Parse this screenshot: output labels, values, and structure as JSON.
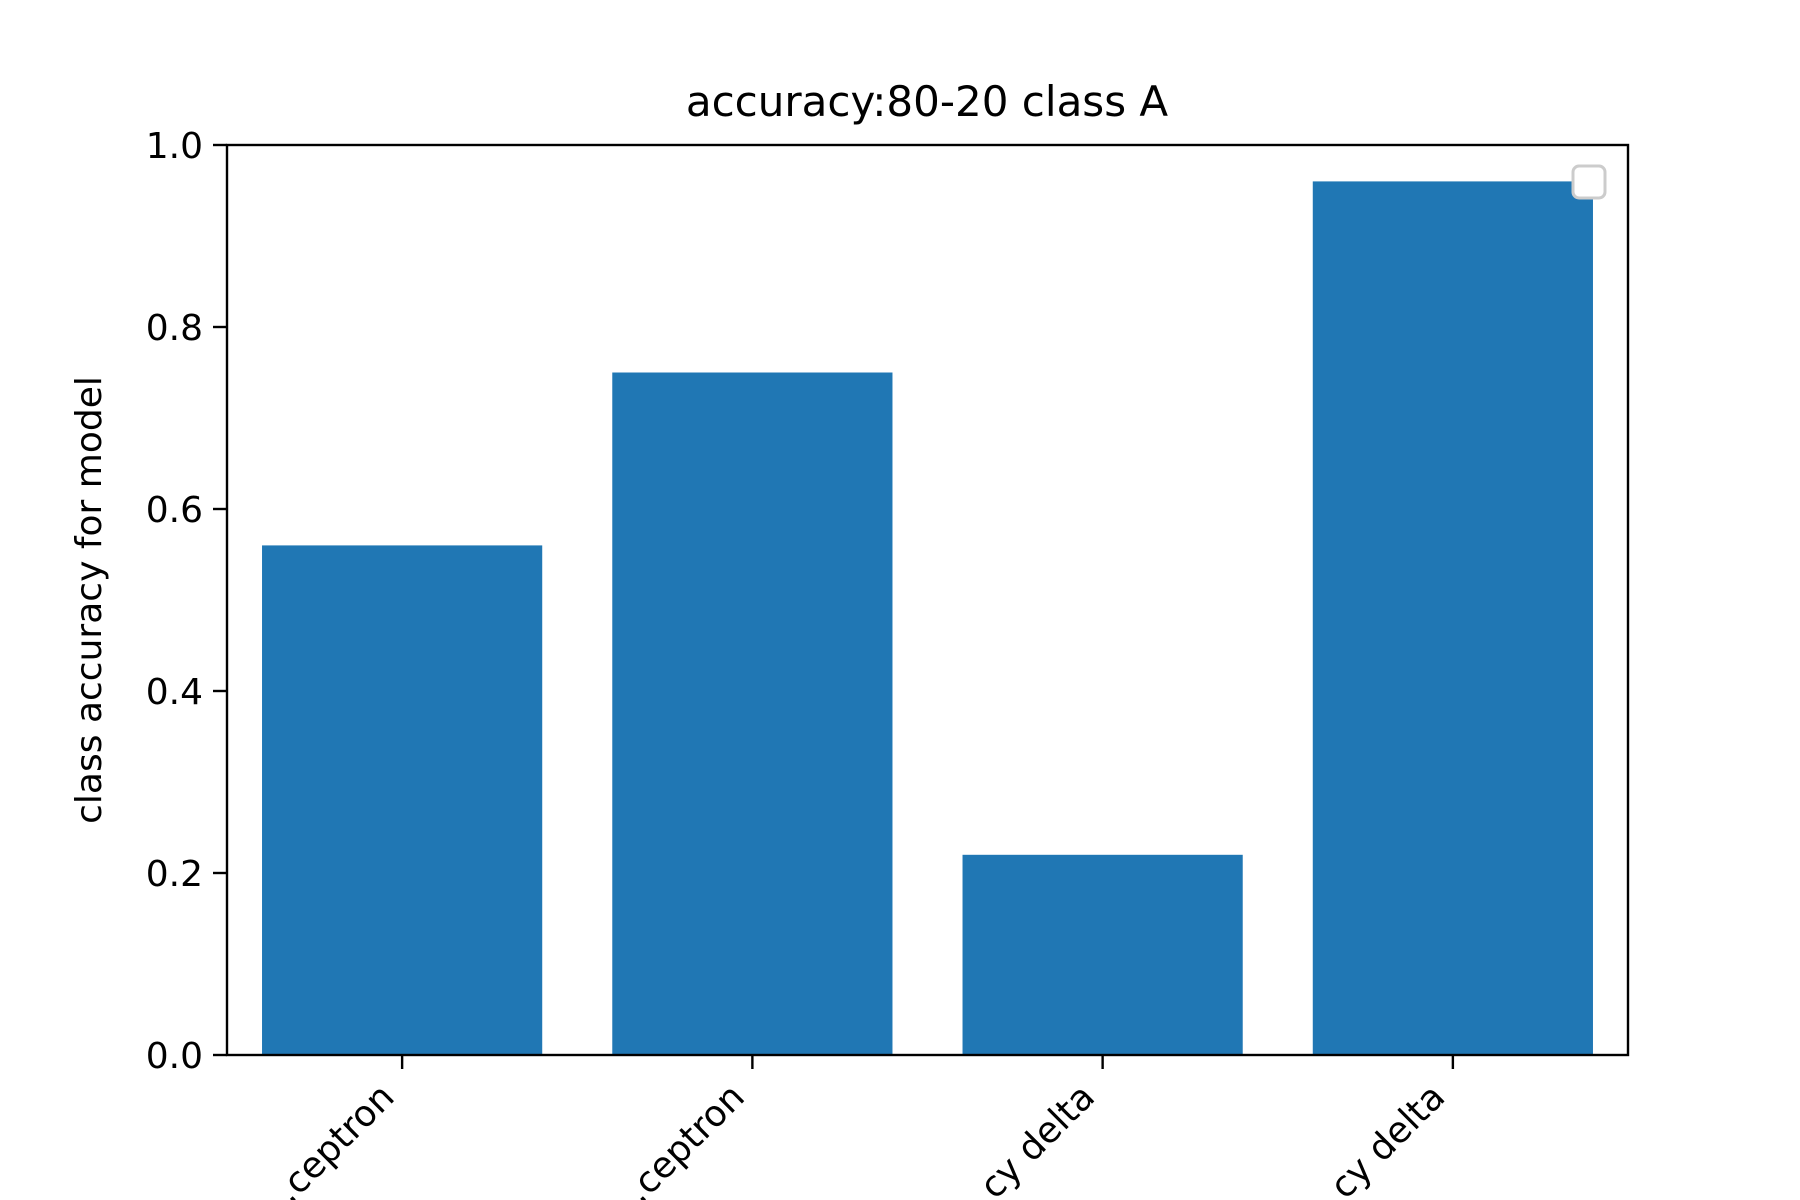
{
  "chart_data": {
    "type": "bar",
    "title": "accuracy:80-20 class A",
    "xlabel": "",
    "ylabel": "class accuracy for model",
    "categories": [
      "…ceptron",
      "…ceptron",
      "…cy delta",
      "…cy delta"
    ],
    "values": [
      0.56,
      0.75,
      0.22,
      0.96
    ],
    "ylim": [
      0.0,
      1.0
    ],
    "yticks": [
      0.0,
      0.2,
      0.4,
      0.6,
      0.8,
      1.0
    ],
    "ytick_labels": [
      "0.0",
      "0.2",
      "0.4",
      "0.6",
      "0.8",
      "1.0"
    ],
    "grid": false,
    "legend": {
      "visible": true,
      "placement": "top-right",
      "entries": []
    },
    "colors": {
      "bar": "#2077b4",
      "axes": "#000000",
      "legend_border": "#cccccc",
      "background": "#ffffff"
    }
  }
}
